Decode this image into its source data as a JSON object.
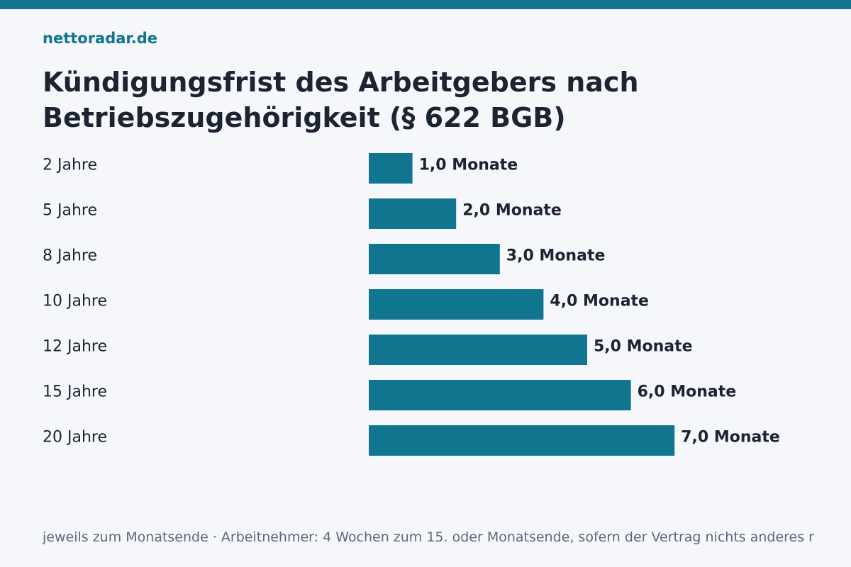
{
  "brand": "nettoradar.de",
  "title": "Kündigungsfrist des Arbeitgebers nach Betriebszugehörigkeit (§ 622 BGB)",
  "footnote": "jeweils zum Monatsende · Arbeitnehmer: 4 Wochen zum 15. oder Monatsende, sofern der Vertrag nichts anderes r",
  "colors": {
    "accent": "#117590",
    "background": "#f5f7fb",
    "text": "#1c2331",
    "muted": "#5e6878"
  },
  "chart_data": {
    "type": "bar",
    "orientation": "horizontal",
    "title": "Kündigungsfrist des Arbeitgebers nach Betriebszugehörigkeit (§ 622 BGB)",
    "categories": [
      "2 Jahre",
      "5 Jahre",
      "8 Jahre",
      "10 Jahre",
      "12 Jahre",
      "15 Jahre",
      "20 Jahre"
    ],
    "values": [
      1.0,
      2.0,
      3.0,
      4.0,
      5.0,
      6.0,
      7.0
    ],
    "value_labels": [
      "1,0 Monate",
      "2,0 Monate",
      "3,0 Monate",
      "4,0 Monate",
      "5,0 Monate",
      "6,0 Monate",
      "7,0 Monate"
    ],
    "unit": "Monate",
    "xlim": [
      0,
      7
    ],
    "grid": false,
    "legend": false
  }
}
